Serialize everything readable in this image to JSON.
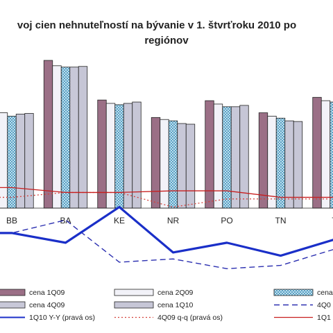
{
  "chart_data": {
    "type": "bar",
    "title_line1": "voj cien nehnuteľností na bývanie v 1. štvrťroku 2010 po",
    "title_line2": "regiónov",
    "categories": [
      "BB",
      "BA",
      "KE",
      "NR",
      "PO",
      "TN",
      "T"
    ],
    "series": [
      {
        "name": "cena 1Q09",
        "kind": "bar",
        "color": "#9b6f86",
        "values": [
          1450,
          2200,
          1610,
          1350,
          1600,
          1420,
          1650
        ]
      },
      {
        "name": "cena 2Q09",
        "kind": "bar",
        "color": "#f2f2f8",
        "values": [
          1420,
          2120,
          1560,
          1320,
          1550,
          1370,
          1600
        ]
      },
      {
        "name": "cena",
        "kind": "bar",
        "color": "#a8cde0",
        "values": [
          1370,
          2100,
          1540,
          1300,
          1510,
          1340,
          1580
        ]
      },
      {
        "name": "cena 4Q09",
        "kind": "bar",
        "color": "#c8c8d8",
        "values": [
          1400,
          2100,
          1560,
          1260,
          1510,
          1300,
          1600
        ]
      },
      {
        "name": "cena 1Q10",
        "kind": "bar",
        "color": "#c6c6d6",
        "values": [
          1410,
          2110,
          1580,
          1250,
          1530,
          1290,
          1610
        ]
      },
      {
        "name": "4Q0",
        "kind": "line",
        "style": "dashed",
        "color": "#2b2fb0",
        "values": [
          -12,
          -8,
          -21,
          -20,
          -23,
          -22,
          -17
        ]
      },
      {
        "name": "1Q10 Y-Y (pravá os)",
        "kind": "line",
        "style": "solid-thick",
        "color": "#1a2fc8",
        "values": [
          -12,
          -15,
          -4,
          -18,
          -15,
          -19,
          -14
        ]
      },
      {
        "name": "4Q09 q-q (pravá os)",
        "kind": "line",
        "style": "dotted",
        "color": "#d4403a",
        "values": [
          -1,
          0.5,
          0.5,
          -4,
          -1.5,
          -1.5,
          -1.5
        ]
      },
      {
        "name": "1Q1",
        "kind": "line",
        "style": "solid",
        "color": "#c81e1e",
        "values": [
          2,
          0.5,
          0.5,
          1,
          1,
          -1,
          -1
        ]
      }
    ],
    "ylim_left": [
      0,
      2500
    ],
    "ylim_right": [
      -30,
      10
    ],
    "legend": {
      "placement": "bottom",
      "entries": [
        {
          "label": "cena 1Q09"
        },
        {
          "label": "cena 2Q09"
        },
        {
          "label": "cena"
        },
        {
          "label": "cena 4Q09"
        },
        {
          "label": "cena 1Q10"
        },
        {
          "label": "4Q0"
        },
        {
          "label": "1Q10  Y-Y  (pravá os)"
        },
        {
          "label": "4Q09  q-q  (pravá os)"
        },
        {
          "label": "1Q1"
        }
      ]
    }
  }
}
